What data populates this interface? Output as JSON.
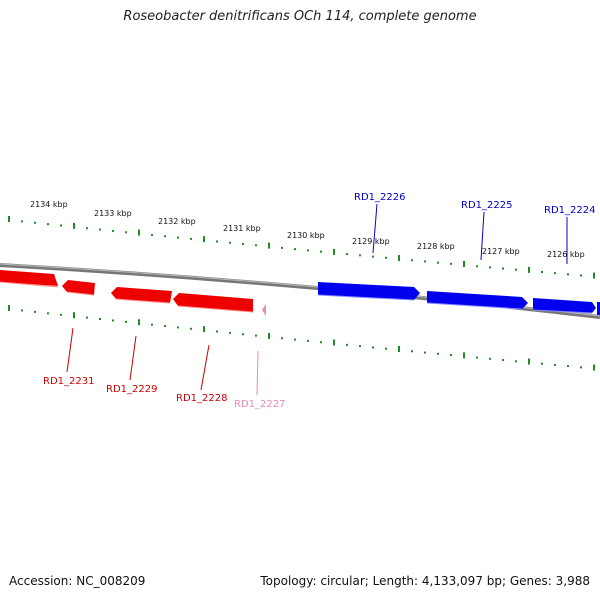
{
  "title": "Roseobacter denitrificans OCh 114, complete genome",
  "accession": "Accession: NC_008209",
  "topology": "Topology: circular; Length: 4,133,097 bp; Genes: 3,988",
  "colors": {
    "forward": "#0000ee",
    "reverse": "#ee0000",
    "pseudo": "#ee88bb",
    "ticks": "#228B22",
    "backbone": "#808080"
  },
  "scale_labels": [
    "2134 kbp",
    "2133 kbp",
    "2132 kbp",
    "2131 kbp",
    "2130 kbp",
    "2129 kbp",
    "2128 kbp",
    "2127 kbp",
    "2126 kbp"
  ],
  "genes": [
    {
      "name": "RD1_2226",
      "strand": "forward"
    },
    {
      "name": "RD1_2225",
      "strand": "forward"
    },
    {
      "name": "RD1_2224",
      "strand": "forward"
    },
    {
      "name": "RD1_2231",
      "strand": "reverse"
    },
    {
      "name": "RD1_2229",
      "strand": "reverse"
    },
    {
      "name": "RD1_2228",
      "strand": "reverse"
    },
    {
      "name": "RD1_2227",
      "strand": "pseudo"
    }
  ]
}
